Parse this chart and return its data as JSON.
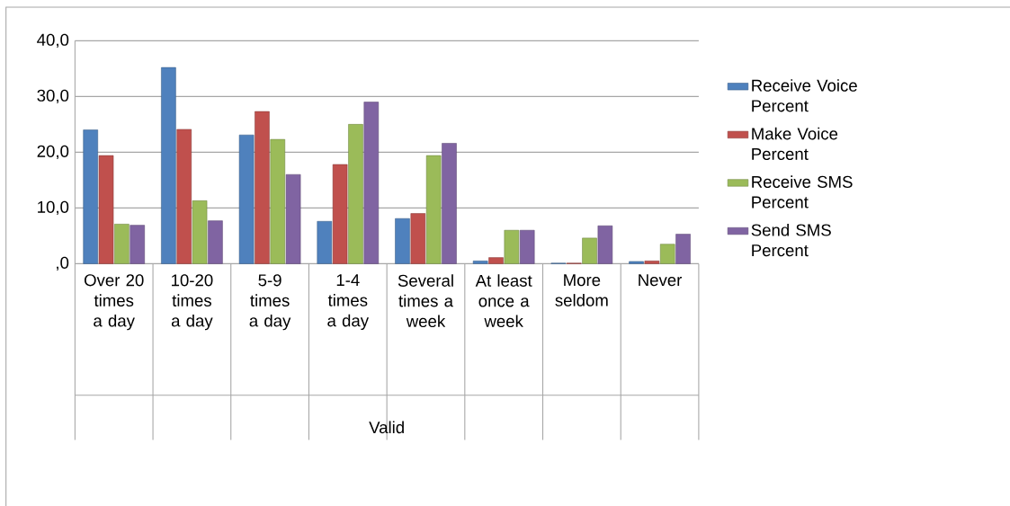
{
  "chart_data": {
    "type": "bar",
    "annotations": [
      "Valid"
    ],
    "categories": [
      "Over 20 times a day",
      "10-20 times a day",
      "5-9 times a day",
      "1-4 times a day",
      "Several times a week",
      "At least once a week",
      "More seldom",
      "Never"
    ],
    "series": [
      {
        "name": "Receive Voice Percent",
        "color": "#4f81bd",
        "values": [
          24.0,
          35.2,
          23.1,
          7.6,
          8.1,
          0.5,
          0.1,
          0.4
        ]
      },
      {
        "name": "Make Voice Percent",
        "color": "#c0504d",
        "values": [
          19.4,
          24.1,
          27.3,
          17.8,
          9.0,
          1.1,
          0.1,
          0.5
        ]
      },
      {
        "name": "Receive SMS Percent",
        "color": "#9bbb59",
        "values": [
          7.1,
          11.3,
          22.3,
          25.0,
          19.4,
          6.0,
          4.6,
          3.5
        ]
      },
      {
        "name": "Send SMS Percent",
        "color": "#8064a2",
        "values": [
          6.9,
          7.7,
          16.0,
          29.0,
          21.6,
          6.0,
          6.8,
          5.3
        ]
      }
    ],
    "ylim": [
      0,
      40
    ],
    "yticks": [
      {
        "value": 0,
        "label": ",0"
      },
      {
        "value": 10,
        "label": "10,0"
      },
      {
        "value": 20,
        "label": "20,0"
      },
      {
        "value": 30,
        "label": "30,0"
      },
      {
        "value": 40,
        "label": "40,0"
      }
    ],
    "grid": "y",
    "legend": "right"
  }
}
